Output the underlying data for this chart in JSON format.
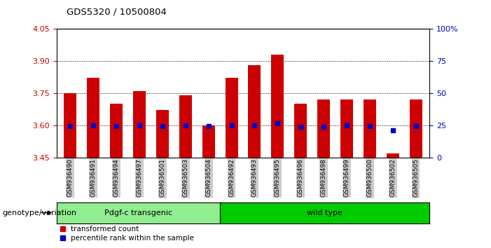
{
  "title": "GDS5320 / 10500804",
  "categories": [
    "GSM936490",
    "GSM936491",
    "GSM936494",
    "GSM936497",
    "GSM936501",
    "GSM936503",
    "GSM936504",
    "GSM936492",
    "GSM936493",
    "GSM936495",
    "GSM936496",
    "GSM936498",
    "GSM936499",
    "GSM936500",
    "GSM936502",
    "GSM936505"
  ],
  "red_values": [
    3.75,
    3.82,
    3.7,
    3.76,
    3.67,
    3.74,
    3.6,
    3.82,
    3.88,
    3.93,
    3.7,
    3.72,
    3.72,
    3.72,
    3.47,
    3.72
  ],
  "blue_values": [
    3.595,
    3.6,
    3.595,
    3.6,
    3.595,
    3.6,
    3.595,
    3.6,
    3.6,
    3.608,
    3.592,
    3.593,
    3.6,
    3.595,
    3.575,
    3.595
  ],
  "ymin": 3.45,
  "ymax": 4.05,
  "yticks": [
    3.45,
    3.6,
    3.75,
    3.9,
    4.05
  ],
  "right_yticks_pct": [
    0,
    25,
    50,
    75,
    100
  ],
  "right_ytick_labels": [
    "0",
    "25",
    "50",
    "75",
    "100%"
  ],
  "grid_lines": [
    3.6,
    3.75,
    3.9
  ],
  "bar_color": "#cc0000",
  "blue_color": "#0000cc",
  "group1_label": "Pdgf-c transgenic",
  "group1_color": "#90EE90",
  "group2_label": "wild type",
  "group2_color": "#00cc00",
  "group1_count": 7,
  "group2_count": 9,
  "legend_red": "transformed count",
  "legend_blue": "percentile rank within the sample",
  "genotype_label": "genotype/variation",
  "ytick_color": "#cc0000",
  "right_ytick_color": "#0000cc",
  "bar_bottom": 3.45,
  "bar_width": 0.55,
  "bg_color": "#ffffff",
  "xtick_bg": "#cccccc"
}
